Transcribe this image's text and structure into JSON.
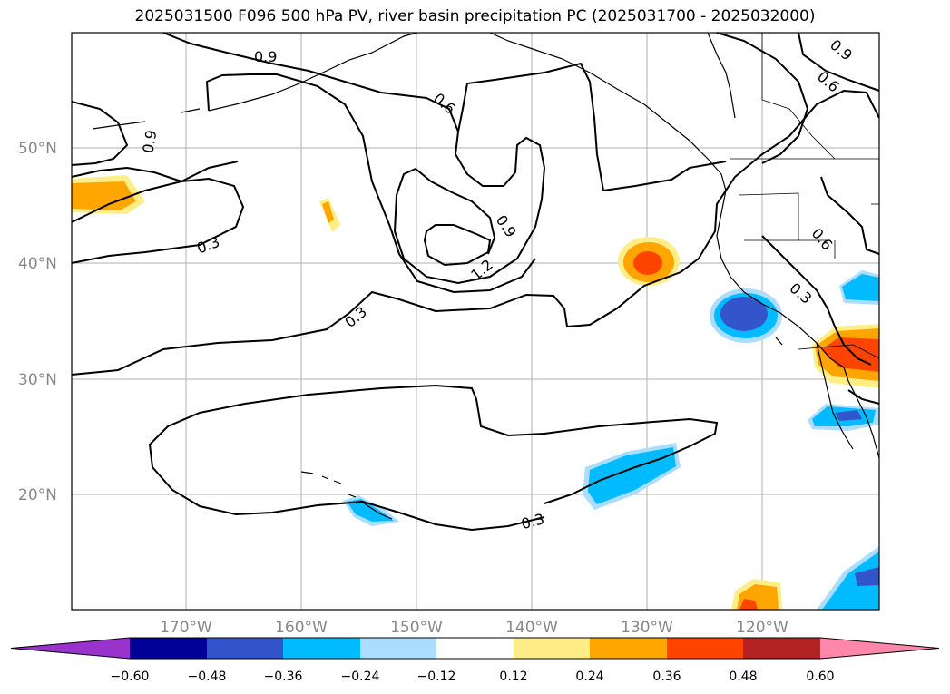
{
  "title": "2025031500 F096 500 hPa PV, river basin precipitation PC (2025031700 - 2025032000)",
  "lat_labels": [
    "50°N",
    "40°N",
    "30°N",
    "20°N"
  ],
  "lon_labels": [
    "170°W",
    "160°W",
    "150°W",
    "140°W",
    "130°W",
    "120°W"
  ],
  "contour_labels": [
    "0.9",
    "0.6",
    "0.9",
    "0.3",
    "0.9",
    "1.2",
    "0.3",
    "0.3",
    "0.9",
    "0.6",
    "0.6",
    "0.3"
  ],
  "colorbar": {
    "ticks": [
      "−0.60",
      "−0.48",
      "−0.36",
      "−0.24",
      "−0.12",
      "0.12",
      "0.24",
      "0.36",
      "0.48",
      "0.60"
    ],
    "colors": [
      "#9933cc",
      "#000099",
      "#3355cc",
      "#00bbff",
      "#aaddff",
      "#ffffff",
      "#ffee88",
      "#ffa500",
      "#ff4400",
      "#b22222",
      "#ff88aa"
    ]
  }
}
